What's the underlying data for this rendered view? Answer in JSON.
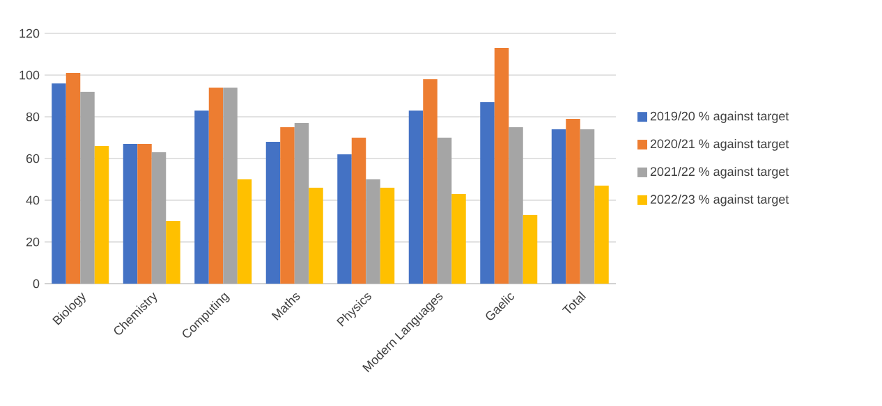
{
  "chart_data": {
    "type": "bar",
    "categories": [
      "Biology",
      "Chemistry",
      "Computing",
      "Maths",
      "Physics",
      "Modern Languages",
      "Gaelic",
      "Total"
    ],
    "series": [
      {
        "name": "2019/20 % against target",
        "color": "#4472c4",
        "values": [
          96,
          67,
          83,
          68,
          62,
          83,
          87,
          74
        ]
      },
      {
        "name": "2020/21 % against target",
        "color": "#ed7d31",
        "values": [
          101,
          67,
          94,
          75,
          70,
          98,
          113,
          79
        ]
      },
      {
        "name": "2021/22 % against target",
        "color": "#a5a5a5",
        "values": [
          92,
          63,
          94,
          77,
          50,
          70,
          75,
          74
        ]
      },
      {
        "name": "2022/23 % against target",
        "color": "#ffc000",
        "values": [
          66,
          30,
          50,
          46,
          46,
          43,
          33,
          47
        ]
      }
    ],
    "ylim": [
      0,
      120
    ],
    "yticks": [
      0,
      20,
      40,
      60,
      80,
      100,
      120
    ],
    "grid": "y",
    "legend": "right"
  }
}
